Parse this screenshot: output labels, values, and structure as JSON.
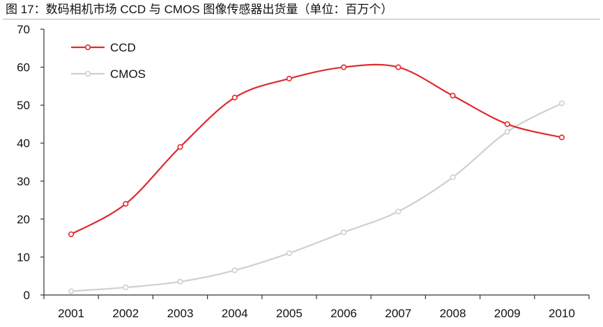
{
  "figure": {
    "title": "图 17：数码相机市场 CCD 与 CMOS 图像传感器出货量（单位：百万个）"
  },
  "chart_data": {
    "type": "line",
    "title": "图 17：数码相机市场 CCD 与 CMOS 图像传感器出货量（单位：百万个）",
    "xlabel": "",
    "ylabel": "",
    "ylim": [
      0,
      70
    ],
    "yticks": [
      0,
      10,
      20,
      30,
      40,
      50,
      60,
      70
    ],
    "x": [
      "2001",
      "2002",
      "2003",
      "2004",
      "2005",
      "2006",
      "2007",
      "2008",
      "2009",
      "2010"
    ],
    "grid": false,
    "legend": "top-left",
    "smooth": true,
    "series": [
      {
        "name": "CCD",
        "color": "#e02a2a",
        "values": [
          16,
          24,
          39,
          52,
          57,
          60,
          60,
          52.5,
          45,
          41.5
        ]
      },
      {
        "name": "CMOS",
        "color": "#cfcfcf",
        "values": [
          1,
          2,
          3.5,
          6.5,
          11,
          16.5,
          22,
          31,
          43,
          50.5
        ]
      }
    ]
  }
}
